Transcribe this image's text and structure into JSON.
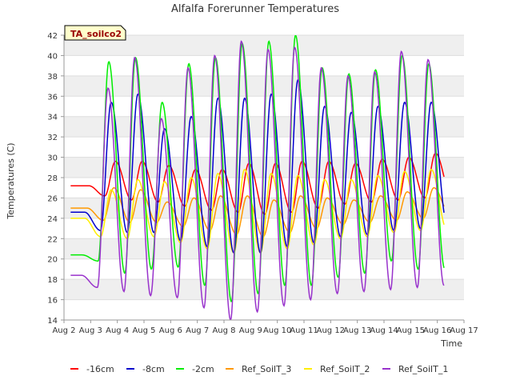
{
  "chart_data": {
    "type": "line",
    "title": "Alfalfa Forerunner Temperatures",
    "xlabel": "Time",
    "ylabel": "Temperatures (C)",
    "site_label": "TA_soilco2",
    "ylim": [
      14,
      42
    ],
    "yticks": [
      14,
      16,
      18,
      20,
      22,
      24,
      26,
      28,
      30,
      32,
      34,
      36,
      38,
      40,
      42
    ],
    "xlim": [
      "2024-08-02",
      "2024-08-17"
    ],
    "xticks": [
      {
        "date": "2024-08-02",
        "label": "Aug 2"
      },
      {
        "date": "2024-08-03",
        "label": "Aug 3"
      },
      {
        "date": "2024-08-04",
        "label": "Aug 4"
      },
      {
        "date": "2024-08-05",
        "label": "Aug 5"
      },
      {
        "date": "2024-08-06",
        "label": "Aug 6"
      },
      {
        "date": "2024-08-07",
        "label": "Aug 7"
      },
      {
        "date": "2024-08-08",
        "label": "Aug 8"
      },
      {
        "date": "2024-08-09",
        "label": "Aug 9"
      },
      {
        "date": "2024-08-10",
        "label": "Aug 10"
      },
      {
        "date": "2024-08-11",
        "label": "Aug 11"
      },
      {
        "date": "2024-08-12",
        "label": "Aug 12"
      },
      {
        "date": "2024-08-13",
        "label": "Aug 13"
      },
      {
        "date": "2024-08-14",
        "label": "Aug 14"
      },
      {
        "date": "2024-08-15",
        "label": "Aug 15"
      },
      {
        "date": "2024-08-16",
        "label": "Aug 16"
      },
      {
        "date": "2024-08-17",
        "label": "Aug 17"
      }
    ],
    "grid": true,
    "legend_position": "bottom",
    "series": [
      {
        "name": "-16cm",
        "color": "#ff0000",
        "x_start": "2024-08-02 06:00",
        "x_end": "2024-08-16 06:00",
        "daily_min": [
          26.2,
          25.8,
          25.6,
          25.2,
          24.8,
          24.6,
          24.4,
          24.6,
          25.0,
          25.4,
          25.6,
          25.8,
          26.0,
          26.2,
          26.0
        ],
        "daily_max": [
          27.2,
          29.6,
          29.6,
          29.2,
          28.8,
          28.8,
          29.4,
          29.4,
          29.6,
          29.6,
          29.4,
          29.8,
          30.0,
          30.4,
          30.4,
          28.0
        ]
      },
      {
        "name": "-8cm",
        "color": "#0000cc",
        "x_start": "2024-08-02 06:00",
        "x_end": "2024-08-16 06:00",
        "daily_min": [
          22.8,
          22.6,
          22.6,
          21.8,
          21.2,
          20.6,
          20.6,
          21.2,
          21.6,
          22.2,
          22.4,
          22.8,
          23.0,
          23.4,
          22.6
        ],
        "daily_max": [
          24.6,
          35.4,
          36.2,
          32.8,
          34.0,
          35.8,
          35.8,
          36.2,
          37.6,
          35.0,
          34.4,
          35.0,
          35.4,
          35.4,
          34.2,
          25.0
        ]
      },
      {
        "name": "-2cm",
        "color": "#00ee00",
        "x_start": "2024-08-02 06:00",
        "x_end": "2024-08-16 06:00",
        "daily_min": [
          19.8,
          18.6,
          19.0,
          19.2,
          17.4,
          15.8,
          16.6,
          17.4,
          17.4,
          18.2,
          18.6,
          19.8,
          19.0,
          19.0,
          18.6
        ],
        "daily_max": [
          20.4,
          39.4,
          39.8,
          35.4,
          39.2,
          39.8,
          41.2,
          41.4,
          42.0,
          38.8,
          38.2,
          38.6,
          40.0,
          39.2,
          37.6,
          21.6
        ]
      },
      {
        "name": "Ref_SoilT_3",
        "color": "#ff9900",
        "x_start": "2024-08-02 06:00",
        "x_end": "2024-08-16 06:00",
        "daily_min": [
          23.8,
          23.6,
          23.6,
          23.2,
          22.8,
          22.4,
          22.2,
          22.6,
          23.0,
          23.4,
          23.6,
          23.8,
          24.0,
          24.4,
          24.2
        ],
        "daily_max": [
          25.0,
          27.0,
          26.8,
          25.6,
          26.0,
          26.2,
          26.2,
          25.8,
          26.2,
          26.0,
          25.8,
          26.2,
          26.6,
          27.0,
          27.2,
          25.8
        ]
      },
      {
        "name": "Ref_SoilT_2",
        "color": "#ffee00",
        "x_start": "2024-08-02 06:00",
        "x_end": "2024-08-16 06:00",
        "daily_min": [
          22.2,
          22.0,
          22.2,
          21.6,
          21.0,
          20.6,
          20.6,
          21.0,
          21.4,
          22.0,
          22.2,
          22.6,
          22.8,
          22.8,
          22.6
        ],
        "daily_max": [
          24.0,
          26.8,
          27.8,
          27.6,
          28.0,
          28.4,
          28.8,
          28.4,
          28.2,
          27.8,
          27.8,
          28.2,
          28.6,
          28.8,
          28.0,
          24.4
        ]
      },
      {
        "name": "Ref_SoilT_1",
        "color": "#9933cc",
        "x_start": "2024-08-02 06:00",
        "x_end": "2024-08-16 06:00",
        "daily_min": [
          17.2,
          16.8,
          16.4,
          16.2,
          15.2,
          14.0,
          14.8,
          15.4,
          16.0,
          16.6,
          16.8,
          17.0,
          17.2,
          17.4,
          16.0
        ],
        "daily_max": [
          18.4,
          36.8,
          39.8,
          33.8,
          38.8,
          40.0,
          41.4,
          40.6,
          40.8,
          38.8,
          38.0,
          38.4,
          40.4,
          39.6,
          37.6,
          19.0
        ]
      }
    ]
  }
}
